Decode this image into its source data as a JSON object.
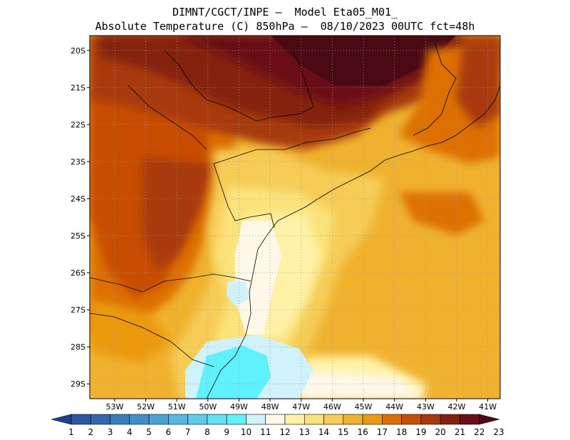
{
  "header": {
    "line1": "DIMNT/CGCT/INPE –  Model Eta05_M01_",
    "line2": "Absolute Temperature (C) 850hPa –  08/10/2023 00UTC fct=48h"
  },
  "map": {
    "lat_labels": [
      "20S",
      "21S",
      "22S",
      "23S",
      "24S",
      "25S",
      "26S",
      "27S",
      "28S",
      "29S"
    ],
    "lon_labels": [
      "53W",
      "52W",
      "51W",
      "50W",
      "49W",
      "48W",
      "47W",
      "46W",
      "45W",
      "44W",
      "43W",
      "42W",
      "41W"
    ],
    "lat_range": [
      -29.4,
      -19.6
    ],
    "lon_range": [
      -53.8,
      -40.6
    ]
  },
  "colorbar": {
    "labels": [
      "1",
      "2",
      "3",
      "4",
      "5",
      "6",
      "7",
      "8",
      "9",
      "10",
      "11",
      "12",
      "13",
      "14",
      "15",
      "16",
      "17",
      "18",
      "19",
      "20",
      "21",
      "22",
      "23"
    ],
    "colors": [
      "#1f3f8f",
      "#2a56a3",
      "#3168b0",
      "#3a7dbf",
      "#3f90c8",
      "#4aa3d3",
      "#55b8df",
      "#5fcbea",
      "#5fe2f2",
      "#60f2fc",
      "#cff2fb",
      "#fff7e8",
      "#fff2a8",
      "#fbe27a",
      "#f6cc56",
      "#f0b22e",
      "#eb9a10",
      "#dd6f06",
      "#c84d05",
      "#a83a09",
      "#84200e",
      "#6b0f18",
      "#4a0a14"
    ]
  }
}
